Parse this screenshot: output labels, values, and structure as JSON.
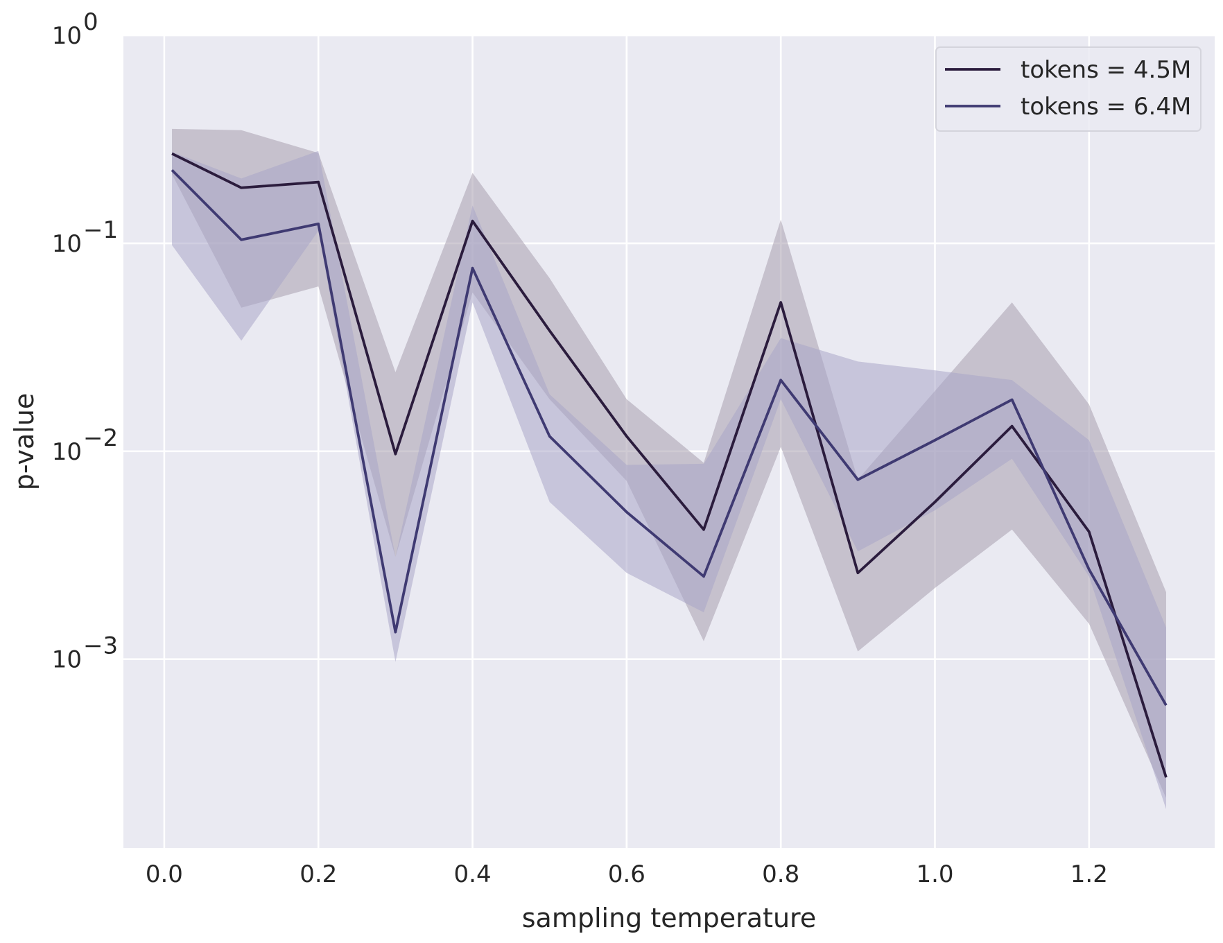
{
  "chart_data": {
    "type": "line",
    "xlabel": "sampling temperature",
    "ylabel": "p-value",
    "xlim": [
      -0.053,
      1.363
    ],
    "ylim_log10": [
      -3.908,
      0.0
    ],
    "yscale": "log",
    "grid": true,
    "x_ticks": [
      0.0,
      0.2,
      0.4,
      0.6,
      0.8,
      1.0,
      1.2
    ],
    "x_tick_labels": [
      "0.0",
      "0.2",
      "0.4",
      "0.6",
      "0.8",
      "1.0",
      "1.2"
    ],
    "y_ticks": [
      {
        "value": 0.001,
        "base": "10",
        "exp": "−3"
      },
      {
        "value": 0.01,
        "base": "10",
        "exp": "−2"
      },
      {
        "value": 0.1,
        "base": "10",
        "exp": "−1"
      },
      {
        "value": 1,
        "base": "10",
        "exp": "0"
      }
    ],
    "legend_position": "upper right",
    "x": [
      0.01,
      0.1,
      0.2,
      0.3,
      0.4,
      0.5,
      0.6,
      0.7,
      0.8,
      0.9,
      1.0,
      1.1,
      1.2,
      1.3
    ],
    "series": [
      {
        "name": "tokens = 4.5M",
        "color": "#2b1c3d",
        "band_color": "#a79fae",
        "values": [
          0.27,
          0.185,
          0.197,
          0.0097,
          0.128,
          0.038,
          0.0118,
          0.0042,
          0.052,
          0.0026,
          0.0057,
          0.0132,
          0.0041,
          0.00027
        ],
        "lower": [
          0.215,
          0.049,
          0.062,
          0.0031,
          0.058,
          0.0178,
          0.0072,
          0.00122,
          0.0105,
          0.00109,
          0.0022,
          0.0042,
          0.00148,
          0.000215
        ],
        "upper": [
          0.355,
          0.35,
          0.272,
          0.024,
          0.218,
          0.068,
          0.0178,
          0.0088,
          0.13,
          0.0073,
          0.0195,
          0.052,
          0.0168,
          0.0021
        ]
      },
      {
        "name": "tokens = 6.4M",
        "color": "#3f3a72",
        "band_color": "#a9a6c8",
        "values": [
          0.225,
          0.104,
          0.124,
          0.00135,
          0.076,
          0.0118,
          0.0051,
          0.0025,
          0.022,
          0.0073,
          0.0113,
          0.0177,
          0.0027,
          0.0006
        ],
        "lower": [
          0.098,
          0.034,
          0.115,
          0.00097,
          0.052,
          0.0057,
          0.0026,
          0.00168,
          0.0178,
          0.0033,
          0.0052,
          0.0092,
          0.0025,
          0.00019
        ],
        "upper": [
          0.275,
          0.205,
          0.278,
          0.0031,
          0.152,
          0.0188,
          0.0086,
          0.0087,
          0.035,
          0.027,
          0.0245,
          0.022,
          0.0113,
          0.00142
        ]
      }
    ]
  }
}
